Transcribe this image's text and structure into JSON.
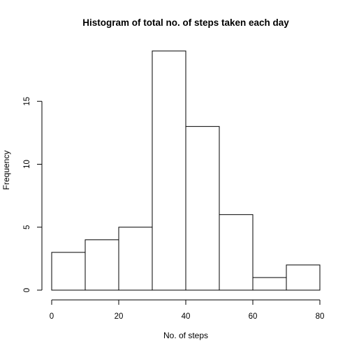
{
  "chart_data": {
    "type": "bar",
    "title": "Histogram of total no. of steps taken each day",
    "xlabel": "No. of steps",
    "ylabel": "Frequency",
    "bins": [
      {
        "from": 0,
        "to": 10,
        "value": 3
      },
      {
        "from": 10,
        "to": 20,
        "value": 4
      },
      {
        "from": 20,
        "to": 30,
        "value": 5
      },
      {
        "from": 30,
        "to": 40,
        "value": 19
      },
      {
        "from": 40,
        "to": 50,
        "value": 13
      },
      {
        "from": 50,
        "to": 60,
        "value": 6
      },
      {
        "from": 60,
        "to": 70,
        "value": 1
      },
      {
        "from": 70,
        "to": 80,
        "value": 2
      }
    ],
    "xlim": [
      0,
      80
    ],
    "ylim": [
      0,
      19
    ],
    "x_ticks": [
      0,
      20,
      40,
      60,
      80
    ],
    "y_ticks": [
      0,
      5,
      10,
      15
    ],
    "grid": false,
    "legend": "none",
    "bar_fill": "#ffffff",
    "bar_stroke": "#000000"
  }
}
